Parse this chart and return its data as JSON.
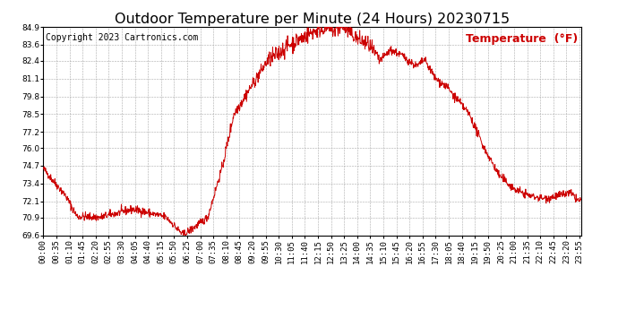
{
  "title": "Outdoor Temperature per Minute (24 Hours) 20230715",
  "copyright": "Copyright 2023 Cartronics.com",
  "legend_label": "Temperature  (°F)",
  "line_color": "#cc0000",
  "background_color": "#ffffff",
  "grid_color": "#aaaaaa",
  "ylim": [
    69.6,
    84.9
  ],
  "yticks": [
    69.6,
    70.9,
    72.1,
    73.4,
    74.7,
    76.0,
    77.2,
    78.5,
    79.8,
    81.1,
    82.4,
    83.6,
    84.9
  ],
  "xtick_interval": 35,
  "title_fontsize": 11.5,
  "tick_fontsize": 6.5,
  "copyright_fontsize": 7,
  "legend_fontsize": 9
}
